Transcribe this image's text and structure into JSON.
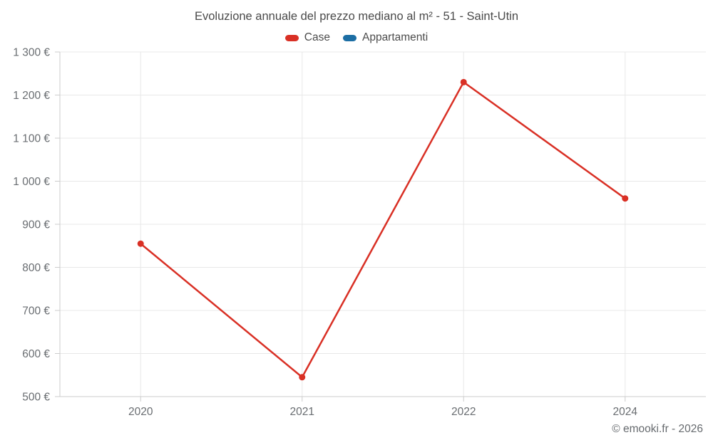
{
  "chart_data": {
    "type": "line",
    "title": "Evoluzione annuale del prezzo mediano al m² - 51 - Saint-Utin",
    "categories": [
      "2020",
      "2021",
      "2022",
      "2024"
    ],
    "series": [
      {
        "name": "Case",
        "color": "#d93025",
        "values": [
          855,
          545,
          1230,
          960
        ]
      },
      {
        "name": "Appartamenti",
        "color": "#1c6ea4",
        "values": []
      }
    ],
    "ylim": [
      500,
      1300
    ],
    "ytick_step": 100,
    "ytick_labels": [
      "500 €",
      "600 €",
      "700 €",
      "800 €",
      "900 €",
      "1 000 €",
      "1 100 €",
      "1 200 €",
      "1 300 €"
    ],
    "xlabel": "",
    "ylabel": "",
    "grid": true,
    "legend_position": "top",
    "colors": {
      "title_text": "#4a4a4a",
      "axis_label_text": "#696d71",
      "gridline": "#e8e8e8",
      "axis_line": "#cccccc",
      "background": "#ffffff"
    }
  },
  "footer": {
    "credit": "© emooki.fr - 2026"
  }
}
